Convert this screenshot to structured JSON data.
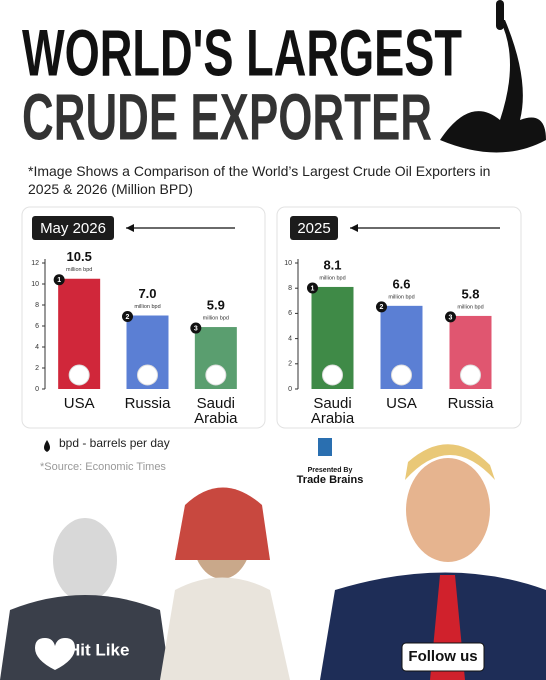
{
  "header": {
    "title_line1": "WORLD'S LARGEST",
    "title_line2": "CRUDE EXPORTER",
    "subtitle": "*Image Shows a Comparison of the World’s Largest Crude Oil Exporters in 2025 & 2026 (Million BPD)"
  },
  "chart_data": [
    {
      "type": "bar",
      "title": "May 2026",
      "categories": [
        "USA",
        "Russia",
        "Saudi Arabia"
      ],
      "values": [
        10.5,
        7.0,
        5.9
      ],
      "value_labels": [
        "10.5",
        "7.0",
        "5.9"
      ],
      "value_unit": "million bpd",
      "ranks": [
        1,
        2,
        3
      ],
      "colors": [
        "#d0273a",
        "#5b7fd4",
        "#5a9e6f"
      ],
      "ylim": [
        0,
        12
      ],
      "yticks": [
        0,
        2,
        4,
        6,
        8,
        10,
        12
      ]
    },
    {
      "type": "bar",
      "title": "2025",
      "categories": [
        "Saudi Arabia",
        "USA",
        "Russia"
      ],
      "values": [
        8.1,
        6.6,
        5.8
      ],
      "value_labels": [
        "8.1",
        "6.6",
        "5.8"
      ],
      "value_unit": "million bpd",
      "ranks": [
        1,
        2,
        3
      ],
      "colors": [
        "#3f8a47",
        "#5b7fd4",
        "#e05670"
      ],
      "ylim": [
        0,
        10
      ],
      "yticks": [
        0,
        2,
        4,
        6,
        8,
        10
      ]
    }
  ],
  "legend": "bpd - barrels per day",
  "source": "*Source: Economic Times",
  "brand": {
    "presented_by": "Presented By",
    "name": "Trade Brains"
  },
  "footer": {
    "like": "Hit Like",
    "follow": "Follow us"
  }
}
